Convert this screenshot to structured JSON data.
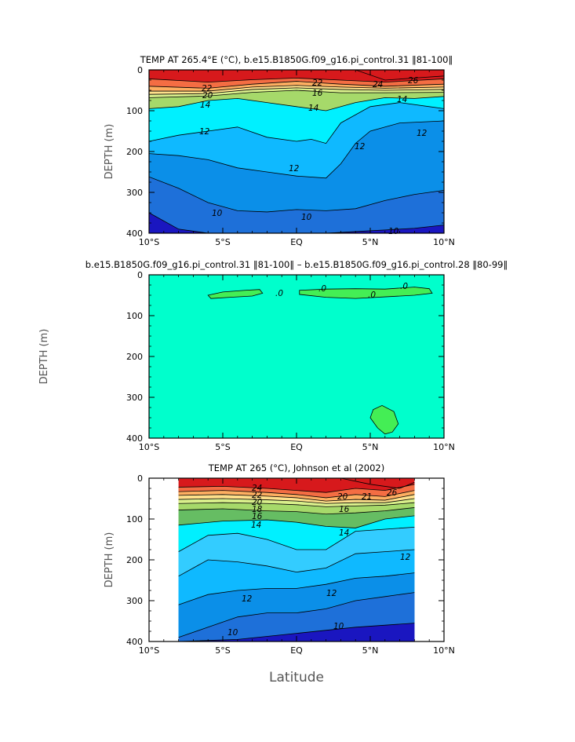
{
  "colors": {
    "warm": [
      "#d7191c",
      "#f46d43",
      "#fdae61",
      "#fee08b",
      "#ffffbf"
    ],
    "transition": [
      "#d9ef8b",
      "#a6d96a",
      "#66bd63",
      "#1a9850"
    ],
    "cold": [
      "#00f0ff",
      "#33ccff",
      "#0fb9ff",
      "#0b8fe8",
      "#1e70d9",
      "#1949d1",
      "#1a16c0"
    ],
    "diff_background": "#00ffcc",
    "diff_positive": "#44ee55"
  },
  "xlabel": "Latitude",
  "ylabel": "DEPTH (m)",
  "chart_data": [
    {
      "type": "contour",
      "title": "TEMP AT 265.4°E (°C), b.e15.B1850G.f09_g16.pi_control.31 ‖81-100‖",
      "ylabel": "DEPTH (m)",
      "x_range": [
        -10,
        10
      ],
      "y_range": [
        0,
        400
      ],
      "y_inverted": true,
      "x_ticks": [
        "10°S",
        "5°S",
        "EQ",
        "5°N",
        "10°N"
      ],
      "y_ticks": [
        "0",
        "100",
        "200",
        "300",
        "400"
      ],
      "contour_labels": [
        "22",
        "22",
        "24",
        "26",
        "14",
        "14",
        "14",
        "12",
        "12",
        "12",
        "12",
        "10",
        "10",
        "10",
        "20",
        "16"
      ],
      "isotherms": [
        {
          "level": 26,
          "x": [
            4.0,
            6,
            8,
            10
          ],
          "y": [
            0,
            25,
            20,
            15
          ]
        },
        {
          "level": 24,
          "x": [
            -10,
            -6,
            -3,
            0,
            3,
            6,
            10
          ],
          "y": [
            22,
            30,
            24,
            20,
            25,
            30,
            22
          ]
        },
        {
          "level": 22,
          "x": [
            -10,
            -6,
            -3,
            0,
            3,
            6,
            10
          ],
          "y": [
            40,
            45,
            35,
            28,
            35,
            40,
            35
          ]
        },
        {
          "level": 20,
          "x": [
            -10,
            -6,
            -3,
            0,
            3,
            6,
            10
          ],
          "y": [
            52,
            52,
            42,
            38,
            42,
            45,
            42
          ]
        },
        {
          "level": 18,
          "x": [
            -10,
            -6,
            -3,
            0,
            3,
            6,
            10
          ],
          "y": [
            60,
            58,
            48,
            44,
            48,
            50,
            48
          ]
        },
        {
          "level": 16,
          "x": [
            -10,
            -6,
            -3,
            0,
            3,
            6,
            10
          ],
          "y": [
            68,
            64,
            55,
            50,
            56,
            56,
            55
          ]
        },
        {
          "level": 14,
          "x": [
            -10,
            -8,
            -6,
            -4,
            -2,
            0,
            2,
            4,
            6,
            8,
            10
          ],
          "y": [
            95,
            90,
            75,
            70,
            80,
            90,
            100,
            80,
            68,
            70,
            65
          ]
        },
        {
          "level": 12,
          "x": [
            -10,
            -8,
            -6,
            -4,
            -2,
            0,
            1,
            2,
            3,
            5,
            7,
            9,
            10
          ],
          "y": [
            175,
            160,
            150,
            140,
            165,
            175,
            170,
            180,
            130,
            90,
            80,
            90,
            95
          ]
        },
        {
          "level": 11,
          "x": [
            -10,
            -8,
            -6,
            -4,
            -2,
            0,
            2,
            3,
            4,
            5,
            7,
            10
          ],
          "y": [
            205,
            210,
            220,
            240,
            250,
            260,
            265,
            230,
            180,
            150,
            130,
            125
          ]
        },
        {
          "level": 10,
          "x": [
            -10,
            -8,
            -6,
            -4,
            -2,
            0,
            2,
            4,
            6,
            8,
            10
          ],
          "y": [
            262,
            290,
            325,
            345,
            348,
            342,
            345,
            340,
            320,
            305,
            295
          ]
        },
        {
          "level": 9,
          "x": [
            -10,
            -8,
            -6,
            -4,
            -2,
            0,
            2,
            4,
            6,
            8,
            10
          ],
          "y": [
            350,
            390,
            400,
            400,
            400,
            400,
            400,
            396,
            392,
            388,
            380
          ]
        }
      ]
    },
    {
      "type": "contour",
      "title": "b.e15.B1850G.f09_g16.pi_control.31 ‖81-100‖ – b.e15.B1850G.f09_g16.pi_control.28 ‖80-99‖",
      "ylabel": "DEPTH (m)",
      "x_range": [
        -10,
        10
      ],
      "y_range": [
        0,
        400
      ],
      "y_inverted": true,
      "x_ticks": [
        "10°S",
        "5°S",
        "EQ",
        "5°N",
        "10°N"
      ],
      "y_ticks": [
        "0",
        "100",
        "200",
        "300",
        "400"
      ],
      "contour_labels": [
        ".0",
        ".0",
        ".0",
        ".0"
      ],
      "positive_regions": [
        {
          "x": [
            -6.0,
            -5.0,
            -3.5,
            -2.5,
            -2.3,
            -3.0,
            -4.5,
            -5.8
          ],
          "y": [
            50,
            42,
            38,
            36,
            45,
            52,
            55,
            58
          ]
        },
        {
          "x": [
            0.2,
            2.0,
            4.0,
            6.0,
            8.0,
            9.0,
            9.2,
            8.0,
            6.0,
            4.0,
            2.0,
            0.2
          ],
          "y": [
            38,
            35,
            34,
            35,
            30,
            34,
            45,
            50,
            54,
            58,
            55,
            48
          ]
        },
        {
          "x": [
            5.2,
            5.8,
            6.6,
            6.9,
            6.5,
            6.0,
            5.5,
            5.0
          ],
          "y": [
            330,
            320,
            335,
            365,
            385,
            390,
            375,
            350
          ]
        }
      ]
    },
    {
      "type": "contour",
      "title": "TEMP AT 265 (°C), Johnson et al (2002)",
      "ylabel": "DEPTH (m)",
      "x_range": [
        -10,
        10
      ],
      "y_range": [
        0,
        400
      ],
      "y_inverted": true,
      "data_x_extent": [
        -8,
        8
      ],
      "x_ticks": [
        "10°S",
        "5°S",
        "EQ",
        "5°N",
        "10°N"
      ],
      "y_ticks": [
        "0",
        "100",
        "200",
        "300",
        "400"
      ],
      "contour_labels": [
        "24",
        "22",
        "20",
        "18",
        "16",
        "14",
        "14",
        "12",
        "12",
        "12",
        "10",
        "10",
        "26",
        "20",
        "21",
        "16"
      ],
      "isotherms": [
        {
          "level": 26,
          "x": [
            3,
            5,
            7,
            8
          ],
          "y": [
            0,
            15,
            25,
            10
          ]
        },
        {
          "level": 24,
          "x": [
            -8,
            -5,
            -2,
            0,
            2,
            4,
            6,
            8
          ],
          "y": [
            22,
            20,
            25,
            30,
            35,
            25,
            30,
            15
          ]
        },
        {
          "level": 22,
          "x": [
            -8,
            -5,
            -2,
            0,
            2,
            4,
            6,
            8
          ],
          "y": [
            33,
            30,
            35,
            40,
            48,
            40,
            45,
            30
          ]
        },
        {
          "level": 20,
          "x": [
            -8,
            -5,
            -2,
            0,
            2,
            4,
            6,
            8
          ],
          "y": [
            42,
            40,
            44,
            48,
            56,
            52,
            54,
            40
          ]
        },
        {
          "level": 18,
          "x": [
            -8,
            -5,
            -2,
            0,
            2,
            4,
            6,
            8
          ],
          "y": [
            52,
            50,
            53,
            56,
            62,
            60,
            60,
            50
          ]
        },
        {
          "level": 16,
          "x": [
            -8,
            -5,
            -2,
            0,
            2,
            4,
            6,
            8
          ],
          "y": [
            62,
            60,
            62,
            65,
            70,
            68,
            66,
            60
          ]
        },
        {
          "level": 15,
          "x": [
            -8,
            -5,
            -2,
            0,
            2,
            4,
            6,
            8
          ],
          "y": [
            78,
            75,
            80,
            82,
            88,
            85,
            80,
            72
          ]
        },
        {
          "level": 14,
          "x": [
            -8,
            -5,
            -2,
            0,
            2,
            4,
            6,
            8
          ],
          "y": [
            115,
            105,
            102,
            108,
            118,
            122,
            100,
            92
          ]
        },
        {
          "level": 13,
          "x": [
            -8,
            -6,
            -4,
            -2,
            0,
            2,
            4,
            6,
            8
          ],
          "y": [
            180,
            140,
            135,
            150,
            175,
            175,
            130,
            125,
            120
          ]
        },
        {
          "level": 12,
          "x": [
            -8,
            -6,
            -4,
            -2,
            0,
            2,
            4,
            6,
            8
          ],
          "y": [
            240,
            200,
            205,
            215,
            230,
            220,
            185,
            180,
            175
          ]
        },
        {
          "level": 11,
          "x": [
            -8,
            -6,
            -4,
            -2,
            0,
            2,
            4,
            6,
            8
          ],
          "y": [
            310,
            285,
            275,
            270,
            270,
            260,
            245,
            240,
            232
          ]
        },
        {
          "level": 10,
          "x": [
            -8,
            -6,
            -4,
            -2,
            0,
            2,
            4,
            6,
            8
          ],
          "y": [
            390,
            365,
            340,
            330,
            330,
            320,
            300,
            290,
            280
          ]
        },
        {
          "level": 9,
          "x": [
            -8,
            -4,
            0,
            4,
            8
          ],
          "y": [
            400,
            395,
            380,
            365,
            355
          ]
        }
      ]
    }
  ]
}
